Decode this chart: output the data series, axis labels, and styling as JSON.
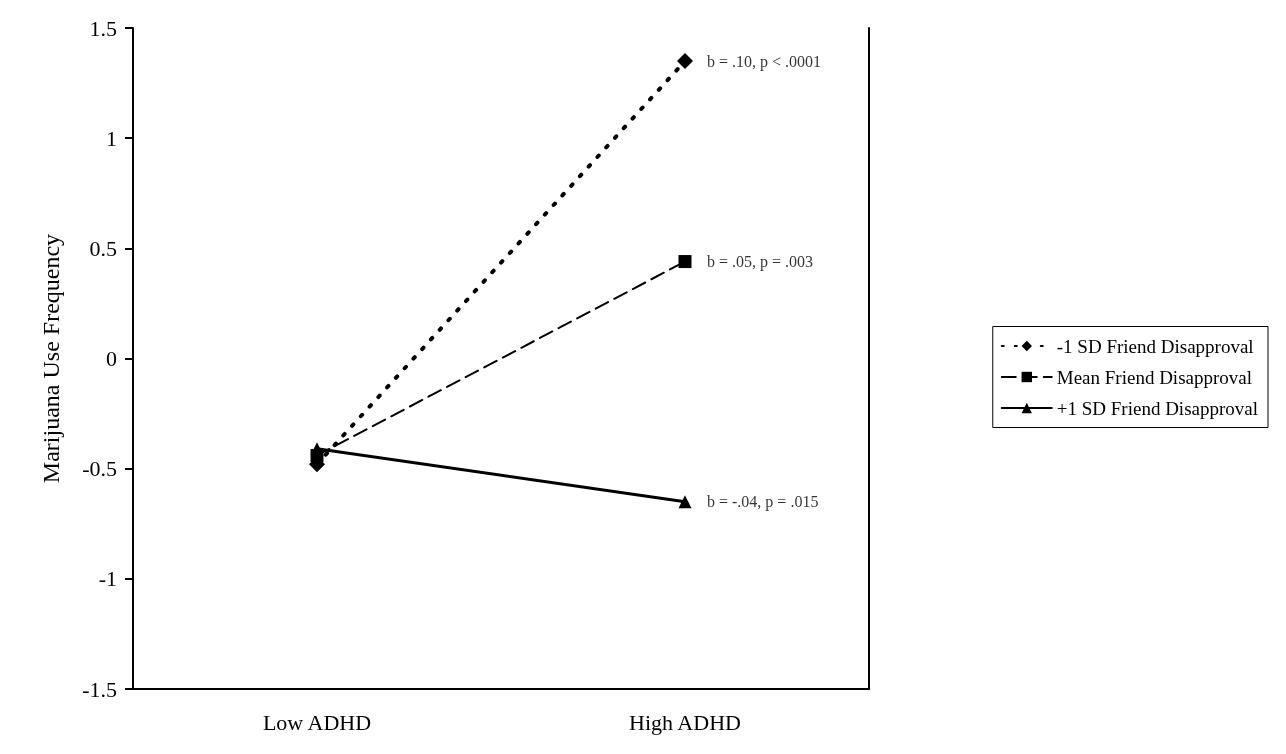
{
  "chart_data": {
    "type": "line",
    "ylabel": "Marijuana Use Frequency",
    "categories": [
      "Low ADHD",
      "High ADHD"
    ],
    "series": [
      {
        "name": "-1 SD Friend Disapproval",
        "color": "#000000",
        "values": [
          -0.48,
          1.35
        ],
        "marker": "diamond",
        "line_style": "dotted"
      },
      {
        "name": "Mean Friend Disapproval",
        "color": "#000000",
        "values": [
          -0.44,
          0.44
        ],
        "marker": "square",
        "line_style": "dashed"
      },
      {
        "name": "+1 SD Friend Disapproval",
        "color": "#000000",
        "values": [
          -0.41,
          -0.65
        ],
        "marker": "triangle",
        "line_style": "solid"
      }
    ],
    "ylim": [
      -1.5,
      1.5
    ],
    "yticks": [
      -1.5,
      -1,
      -0.5,
      0,
      0.5,
      1,
      1.5
    ],
    "grid": false,
    "legend": "right",
    "annotations": [
      {
        "text": "b = .10, p < .0001",
        "x": "High ADHD",
        "y": 1.35
      },
      {
        "text": "b = .05, p = .003",
        "x": "High ADHD",
        "y": 0.44
      },
      {
        "text": "b = -.04, p = .015",
        "x": "High ADHD",
        "y": -0.65
      }
    ]
  }
}
